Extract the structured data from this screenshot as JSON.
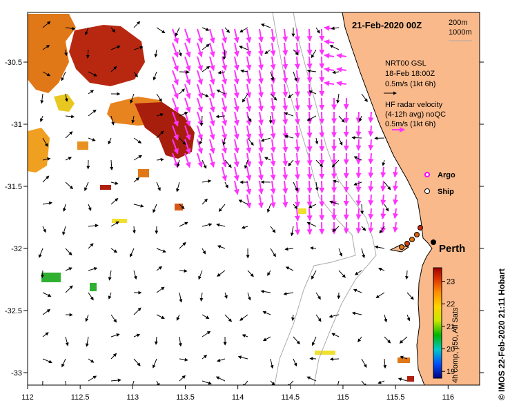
{
  "title": "21-Feb-2020 00Z",
  "bathymetry_legend": [
    "200m",
    "1000m"
  ],
  "model_legend": {
    "line1": "NRT00 GSL",
    "line2": "18-Feb 18:00Z",
    "line3": "0.5m/s (1kt 6h)"
  },
  "radar_legend": {
    "line1": "HF radar velocity",
    "line2": "(4-12h avg) noQC",
    "line3": "0.5m/s (1kt 6h)"
  },
  "symbol_legend": [
    {
      "label": "Argo",
      "color": "#ff00ff"
    },
    {
      "label": "Ship",
      "color": "#ffffff"
    }
  ],
  "city": "Perth",
  "x_axis": {
    "min": 112,
    "max": 116.3,
    "ticks": [
      "112",
      "112.5",
      "113",
      "113.5",
      "114",
      "114.5",
      "115",
      "115.5",
      "116"
    ]
  },
  "y_axis": {
    "min": -33.1,
    "max": -30.1,
    "ticks": [
      "-30.5",
      "-31",
      "-31.5",
      "-32",
      "-32.5",
      "-33"
    ]
  },
  "colorbar": {
    "min": 18.7,
    "max": 23.6,
    "ticks": [
      "19",
      "20",
      "21",
      "22",
      "23"
    ],
    "label": "4h comp, p50, All Sats",
    "stops": [
      "#000080",
      "#0050ff",
      "#00c8c8",
      "#00b400",
      "#c8e600",
      "#ffd200",
      "#ff8c00",
      "#dc3200",
      "#a00000"
    ]
  },
  "credit": "© IMOS 22-Feb-2020 21:11 Hobart",
  "colors": {
    "land": "#f9b98a",
    "radar": "#ff33ff",
    "arrow": "#000000",
    "isobath": "#aaaaaa"
  }
}
